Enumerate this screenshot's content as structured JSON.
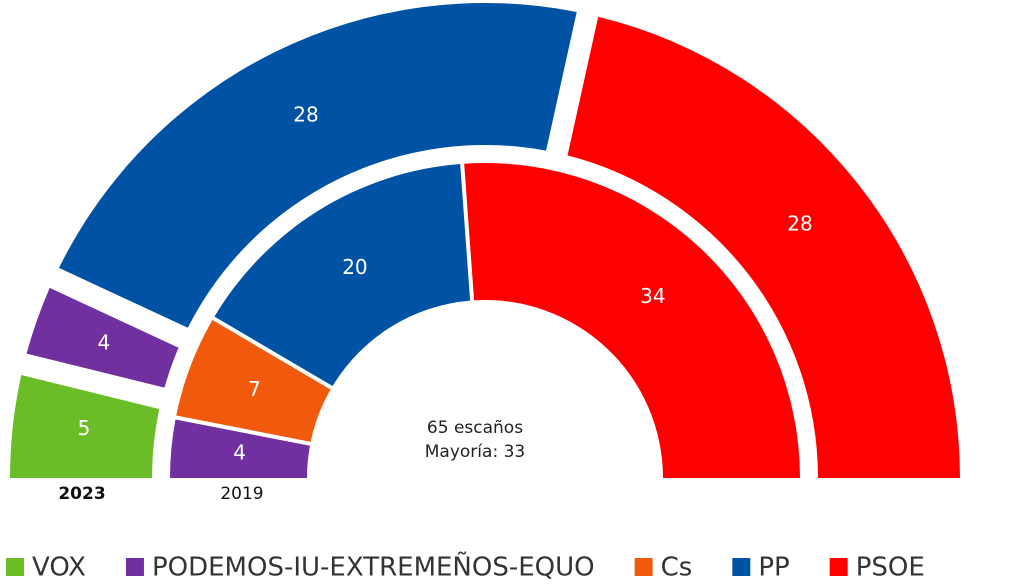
{
  "chart_data": {
    "type": "semicircle",
    "categories": [
      "VOX",
      "PODEMOS-IU-EXTREMEÑOS-EQUO",
      "Cs",
      "PP",
      "PSOE"
    ],
    "colors": [
      "#6abd26",
      "#7030a0",
      "#f15a0c",
      "#0052a5",
      "#ff0000"
    ],
    "series": [
      {
        "name": "2023",
        "values": [
          5,
          4,
          null,
          28,
          28
        ]
      },
      {
        "name": "2019",
        "values": [
          null,
          4,
          7,
          20,
          34
        ]
      }
    ],
    "center_text": [
      "65 escaños",
      "Mayoría: 33"
    ]
  }
}
